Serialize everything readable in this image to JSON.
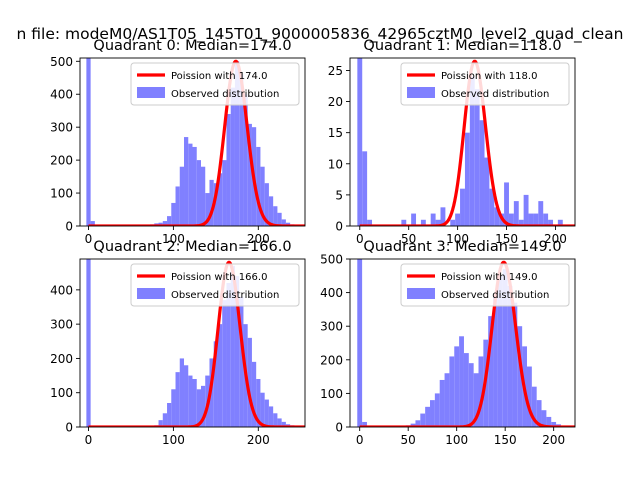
{
  "figure": {
    "suptitle": "n file: modeM0/AS1T05_145T01_9000005836_42965cztM0_level2_quad_clean"
  },
  "colors": {
    "hist": "#8080ff",
    "poisson": "#ff0000",
    "legend_border": "#cccccc"
  },
  "chart_data": [
    {
      "type": "bar",
      "title": "Quadrant 0: Median=174.0",
      "xlim": [
        -10,
        255
      ],
      "ylim": [
        0,
        510
      ],
      "xticks": [
        0,
        100,
        200
      ],
      "yticks": [
        0,
        100,
        200,
        300,
        400,
        500
      ],
      "bin_start": -2.5,
      "bin_width": 5,
      "bin_labels": [
        0,
        5,
        10,
        15,
        20,
        25,
        30,
        35,
        40,
        45,
        50,
        55,
        60,
        65,
        70,
        75,
        80,
        85,
        90,
        95,
        100,
        105,
        110,
        115,
        120,
        125,
        130,
        135,
        140,
        145,
        150,
        155,
        160,
        165,
        170,
        175,
        180,
        185,
        190,
        195,
        200,
        205,
        210,
        215,
        220,
        225,
        230,
        235,
        240
      ],
      "counts": [
        510,
        15,
        0,
        0,
        0,
        0,
        0,
        0,
        0,
        0,
        0,
        0,
        0,
        0,
        0,
        5,
        8,
        10,
        15,
        30,
        70,
        120,
        180,
        270,
        250,
        240,
        200,
        180,
        100,
        140,
        130,
        160,
        200,
        340,
        420,
        500,
        460,
        400,
        310,
        300,
        240,
        180,
        130,
        90,
        60,
        40,
        20,
        10,
        5
      ],
      "poisson": {
        "mean": 174.0,
        "label": "Poission with 174.0"
      },
      "legend": {
        "line": "Poission with 174.0",
        "patch": "Observed distribution",
        "position": "upper-right"
      }
    },
    {
      "type": "bar",
      "title": "Quadrant 1: Median=118.0",
      "xlim": [
        -10,
        220
      ],
      "ylim": [
        0,
        27
      ],
      "xticks": [
        0,
        50,
        100,
        150,
        200
      ],
      "yticks": [
        0,
        5,
        10,
        15,
        20,
        25
      ],
      "bin_start": -2.5,
      "bin_width": 5,
      "bin_labels": [
        0,
        5,
        10,
        15,
        20,
        25,
        30,
        35,
        40,
        45,
        50,
        55,
        60,
        65,
        70,
        75,
        80,
        85,
        90,
        95,
        100,
        105,
        110,
        115,
        120,
        125,
        130,
        135,
        140,
        145,
        150,
        155,
        160,
        165,
        170,
        175,
        180,
        185,
        190,
        195,
        200,
        205
      ],
      "counts": [
        27,
        12,
        1,
        0,
        0,
        0,
        0,
        0,
        0,
        1,
        0,
        2,
        0,
        1,
        0,
        2,
        1,
        3,
        0,
        1,
        2,
        6,
        15,
        24,
        22,
        17,
        11,
        6,
        3,
        2,
        7,
        2,
        4,
        1,
        5,
        2,
        2,
        4,
        2,
        1,
        0,
        1
      ],
      "poisson": {
        "mean": 118.0,
        "label": "Poission with 118.0"
      },
      "legend": {
        "line": "Poission with 118.0",
        "patch": "Observed distribution",
        "position": "upper-right"
      }
    },
    {
      "type": "bar",
      "title": "Quadrant 2: Median=166.0",
      "xlim": [
        -10,
        255
      ],
      "ylim": [
        0,
        490
      ],
      "xticks": [
        0,
        100,
        200
      ],
      "yticks": [
        0,
        100,
        200,
        300,
        400
      ],
      "bin_start": -2.5,
      "bin_width": 5,
      "bin_labels": [
        0,
        5,
        10,
        15,
        20,
        25,
        30,
        35,
        40,
        45,
        50,
        55,
        60,
        65,
        70,
        75,
        80,
        85,
        90,
        95,
        100,
        105,
        110,
        115,
        120,
        125,
        130,
        135,
        140,
        145,
        150,
        155,
        160,
        165,
        170,
        175,
        180,
        185,
        190,
        195,
        200,
        205,
        210,
        215,
        220,
        225,
        230,
        235,
        240
      ],
      "counts": [
        490,
        0,
        0,
        0,
        0,
        0,
        0,
        0,
        0,
        0,
        0,
        0,
        0,
        0,
        0,
        0,
        5,
        20,
        40,
        70,
        110,
        160,
        200,
        180,
        150,
        140,
        110,
        120,
        150,
        200,
        250,
        300,
        370,
        420,
        470,
        440,
        380,
        300,
        260,
        190,
        140,
        100,
        80,
        60,
        40,
        25,
        15,
        8,
        5
      ],
      "poisson": {
        "mean": 166.0,
        "label": "Poission with 166.0"
      },
      "legend": {
        "line": "Poission with 166.0",
        "patch": "Observed distribution",
        "position": "upper-right"
      }
    },
    {
      "type": "bar",
      "title": "Quadrant 3: Median=149.0",
      "xlim": [
        -10,
        222
      ],
      "ylim": [
        0,
        500
      ],
      "xticks": [
        0,
        50,
        100,
        150,
        200
      ],
      "yticks": [
        0,
        100,
        200,
        300,
        400,
        500
      ],
      "bin_start": -2.5,
      "bin_width": 5,
      "bin_labels": [
        0,
        5,
        10,
        15,
        20,
        25,
        30,
        35,
        40,
        45,
        50,
        55,
        60,
        65,
        70,
        75,
        80,
        85,
        90,
        95,
        100,
        105,
        110,
        115,
        120,
        125,
        130,
        135,
        140,
        145,
        150,
        155,
        160,
        165,
        170,
        175,
        180,
        185,
        190,
        195,
        200,
        205
      ],
      "counts": [
        500,
        15,
        0,
        0,
        0,
        0,
        0,
        0,
        0,
        0,
        5,
        10,
        20,
        40,
        60,
        80,
        100,
        140,
        160,
        210,
        240,
        270,
        220,
        190,
        160,
        210,
        260,
        330,
        390,
        450,
        470,
        420,
        370,
        300,
        240,
        180,
        120,
        80,
        50,
        30,
        15,
        8
      ],
      "poisson": {
        "mean": 149.0,
        "label": "Poission with 149.0"
      },
      "legend": {
        "line": "Poission with 149.0",
        "patch": "Observed distribution",
        "position": "upper-right"
      }
    }
  ]
}
